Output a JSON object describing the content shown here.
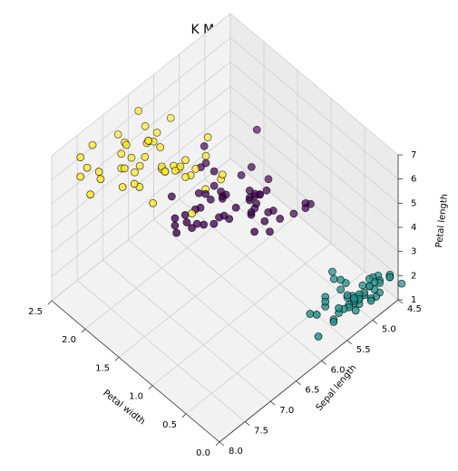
{
  "chart_data": {
    "type": "scatter",
    "projection": "3d",
    "title": "K Means",
    "axes": {
      "x": {
        "label": "Petal width",
        "range": [
          0.0,
          2.5
        ],
        "ticks": [
          "0.0",
          "0.5",
          "1.0",
          "1.5",
          "2.0",
          "2.5"
        ]
      },
      "y": {
        "label": "Sepal length",
        "range": [
          4.5,
          8.0
        ],
        "ticks": [
          "4.5",
          "5.0",
          "5.5",
          "6.0",
          "6.5",
          "7.0",
          "7.5",
          "8.0"
        ]
      },
      "z": {
        "label": "Petal length",
        "range": [
          1,
          7
        ],
        "ticks": [
          "1",
          "2",
          "3",
          "4",
          "5",
          "6",
          "7"
        ]
      }
    },
    "grid": true,
    "legend": "none",
    "series": [
      {
        "color": "#fde725",
        "points": [
          [
            1.8,
            6.7,
            5.8
          ],
          [
            2.2,
            6.5,
            5.8
          ],
          [
            2.1,
            7.1,
            5.9
          ],
          [
            1.8,
            6.3,
            5.6
          ],
          [
            2.2,
            6.5,
            5.8
          ],
          [
            2.1,
            7.6,
            6.6
          ],
          [
            1.8,
            7.3,
            6.3
          ],
          [
            1.8,
            6.7,
            5.8
          ],
          [
            2.5,
            7.2,
            6.1
          ],
          [
            2.0,
            6.5,
            5.1
          ],
          [
            1.9,
            6.4,
            5.3
          ],
          [
            2.1,
            6.8,
            5.5
          ],
          [
            2.4,
            5.8,
            5.1
          ],
          [
            2.3,
            6.4,
            5.3
          ],
          [
            1.8,
            6.5,
            5.5
          ],
          [
            2.2,
            7.7,
            6.7
          ],
          [
            2.3,
            7.7,
            6.9
          ],
          [
            1.5,
            6.0,
            5.0
          ],
          [
            2.3,
            6.9,
            5.7
          ],
          [
            2.0,
            5.6,
            4.9
          ],
          [
            2.0,
            7.7,
            6.7
          ],
          [
            1.8,
            6.3,
            4.9
          ],
          [
            2.1,
            6.7,
            5.7
          ],
          [
            1.8,
            7.2,
            6.0
          ],
          [
            1.8,
            6.2,
            4.8
          ],
          [
            1.8,
            6.1,
            4.9
          ],
          [
            2.1,
            6.4,
            5.6
          ],
          [
            1.6,
            7.2,
            5.8
          ],
          [
            1.9,
            7.4,
            6.1
          ],
          [
            2.0,
            7.9,
            6.4
          ],
          [
            2.2,
            6.4,
            5.6
          ],
          [
            1.5,
            6.3,
            5.1
          ],
          [
            1.4,
            6.1,
            5.6
          ],
          [
            2.3,
            7.7,
            6.1
          ],
          [
            2.4,
            6.3,
            5.6
          ],
          [
            1.8,
            6.4,
            5.5
          ],
          [
            2.1,
            6.9,
            5.4
          ],
          [
            2.4,
            6.7,
            5.6
          ],
          [
            2.3,
            6.9,
            5.1
          ],
          [
            2.3,
            6.8,
            5.9
          ],
          [
            2.5,
            6.7,
            5.7
          ],
          [
            2.3,
            6.7,
            5.2
          ],
          [
            1.9,
            6.3,
            5.0
          ],
          [
            2.0,
            6.5,
            5.2
          ],
          [
            2.3,
            6.2,
            5.4
          ],
          [
            1.4,
            6.7,
            5.0
          ],
          [
            2.5,
            6.3,
            6.0
          ],
          [
            1.8,
            5.9,
            5.1
          ]
        ]
      },
      {
        "color": "#440154",
        "points": [
          [
            1.4,
            7.0,
            4.7
          ],
          [
            1.5,
            6.4,
            4.5
          ],
          [
            1.3,
            5.5,
            4.0
          ],
          [
            1.5,
            6.5,
            4.6
          ],
          [
            1.3,
            5.7,
            4.5
          ],
          [
            1.6,
            6.3,
            4.7
          ],
          [
            1.0,
            4.9,
            3.3
          ],
          [
            1.3,
            6.6,
            4.6
          ],
          [
            1.4,
            5.2,
            3.9
          ],
          [
            1.0,
            5.0,
            3.5
          ],
          [
            1.5,
            5.9,
            4.2
          ],
          [
            1.0,
            6.0,
            4.0
          ],
          [
            1.4,
            6.1,
            4.7
          ],
          [
            1.3,
            5.6,
            3.6
          ],
          [
            1.4,
            6.7,
            4.4
          ],
          [
            1.5,
            5.6,
            4.5
          ],
          [
            1.0,
            5.8,
            4.1
          ],
          [
            1.5,
            6.2,
            4.5
          ],
          [
            1.1,
            5.6,
            3.9
          ],
          [
            1.8,
            5.9,
            4.8
          ],
          [
            1.3,
            6.1,
            4.0
          ],
          [
            1.5,
            6.3,
            4.9
          ],
          [
            1.2,
            6.1,
            4.7
          ],
          [
            1.3,
            6.4,
            4.3
          ],
          [
            1.4,
            6.6,
            4.4
          ],
          [
            1.4,
            6.8,
            4.8
          ],
          [
            1.7,
            6.7,
            5.0
          ],
          [
            1.5,
            6.0,
            4.5
          ],
          [
            1.0,
            5.7,
            3.5
          ],
          [
            1.1,
            5.5,
            3.8
          ],
          [
            1.0,
            5.5,
            3.7
          ],
          [
            1.2,
            5.8,
            3.9
          ],
          [
            1.6,
            6.0,
            5.1
          ],
          [
            1.5,
            5.4,
            4.5
          ],
          [
            1.6,
            6.0,
            4.5
          ],
          [
            1.5,
            6.7,
            4.7
          ],
          [
            1.3,
            6.3,
            4.4
          ],
          [
            1.3,
            5.6,
            4.1
          ],
          [
            1.3,
            5.5,
            4.0
          ],
          [
            1.2,
            5.5,
            4.4
          ],
          [
            1.4,
            6.1,
            4.6
          ],
          [
            1.2,
            5.8,
            4.0
          ],
          [
            1.0,
            5.0,
            3.3
          ],
          [
            1.3,
            5.6,
            4.2
          ],
          [
            1.2,
            5.7,
            4.2
          ],
          [
            1.3,
            5.7,
            4.2
          ],
          [
            1.3,
            6.2,
            4.3
          ],
          [
            1.1,
            5.1,
            3.0
          ],
          [
            1.3,
            5.7,
            4.1
          ],
          [
            1.5,
            6.9,
            4.9
          ],
          [
            1.8,
            4.9,
            4.5
          ],
          [
            1.9,
            5.8,
            5.1
          ],
          [
            1.8,
            6.0,
            4.8
          ],
          [
            1.5,
            6.9,
            4.6
          ]
        ]
      },
      {
        "color": "#21918c",
        "points": [
          [
            0.2,
            5.1,
            1.4
          ],
          [
            0.2,
            4.9,
            1.4
          ],
          [
            0.2,
            4.7,
            1.3
          ],
          [
            0.2,
            4.6,
            1.5
          ],
          [
            0.2,
            5.0,
            1.4
          ],
          [
            0.4,
            5.4,
            1.7
          ],
          [
            0.3,
            4.6,
            1.4
          ],
          [
            0.2,
            5.0,
            1.5
          ],
          [
            0.2,
            4.4,
            1.4
          ],
          [
            0.1,
            4.9,
            1.5
          ],
          [
            0.2,
            5.4,
            1.5
          ],
          [
            0.2,
            4.8,
            1.6
          ],
          [
            0.1,
            4.8,
            1.4
          ],
          [
            0.1,
            4.3,
            1.1
          ],
          [
            0.2,
            5.8,
            1.2
          ],
          [
            0.4,
            5.7,
            1.5
          ],
          [
            0.4,
            5.4,
            1.3
          ],
          [
            0.3,
            5.1,
            1.4
          ],
          [
            0.3,
            5.7,
            1.7
          ],
          [
            0.3,
            5.1,
            1.5
          ],
          [
            0.2,
            5.4,
            1.7
          ],
          [
            0.4,
            5.1,
            1.5
          ],
          [
            0.2,
            4.6,
            1.0
          ],
          [
            0.5,
            5.1,
            1.7
          ],
          [
            0.2,
            4.8,
            1.9
          ],
          [
            0.2,
            5.0,
            1.6
          ],
          [
            0.4,
            5.0,
            1.6
          ],
          [
            0.2,
            5.2,
            1.5
          ],
          [
            0.2,
            5.2,
            1.4
          ],
          [
            0.2,
            4.7,
            1.6
          ],
          [
            0.2,
            4.8,
            1.6
          ],
          [
            0.4,
            5.4,
            1.5
          ],
          [
            0.1,
            5.2,
            1.5
          ],
          [
            0.2,
            5.5,
            1.4
          ],
          [
            0.2,
            4.9,
            1.5
          ],
          [
            0.2,
            5.0,
            1.2
          ],
          [
            0.2,
            5.5,
            1.3
          ],
          [
            0.1,
            4.9,
            1.4
          ],
          [
            0.2,
            4.4,
            1.3
          ],
          [
            0.2,
            5.1,
            1.5
          ],
          [
            0.3,
            5.0,
            1.3
          ],
          [
            0.3,
            4.5,
            1.3
          ],
          [
            0.2,
            4.4,
            1.3
          ],
          [
            0.6,
            5.0,
            1.6
          ],
          [
            0.4,
            5.1,
            1.9
          ],
          [
            0.3,
            4.8,
            1.4
          ],
          [
            0.2,
            5.1,
            1.6
          ],
          [
            0.2,
            4.6,
            1.4
          ],
          [
            0.2,
            5.3,
            1.5
          ],
          [
            0.2,
            5.0,
            1.4
          ]
        ]
      }
    ]
  }
}
